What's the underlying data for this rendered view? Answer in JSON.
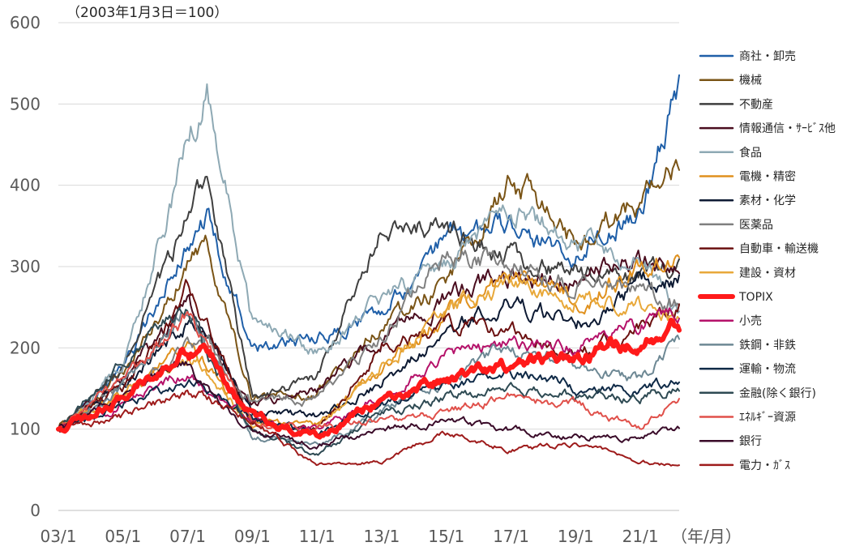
{
  "chart_data": {
    "type": "line",
    "title": "",
    "subtitle": "（2003年1月3日＝100）",
    "xlabel": "（年/月）",
    "ylabel": "",
    "ylim": [
      0,
      600
    ],
    "yticks": [
      "0",
      "100",
      "200",
      "300",
      "400",
      "500",
      "600"
    ],
    "xticks": [
      "03/1",
      "05/1",
      "07/1",
      "09/1",
      "11/1",
      "13/1",
      "15/1",
      "17/1",
      "19/1",
      "21/1"
    ],
    "x": [
      2003.0,
      2005.0,
      2007.0,
      2007.6,
      2009.0,
      2011.0,
      2013.0,
      2015.0,
      2017.0,
      2019.0,
      2021.0,
      2022.2
    ],
    "grid": "horizontal",
    "legend_position": "right",
    "series": [
      {
        "name": "商社・卸売",
        "color": "#1f5fa8",
        "highlight": false,
        "values": [
          100,
          170,
          330,
          360,
          200,
          210,
          250,
          330,
          350,
          320,
          370,
          530
        ]
      },
      {
        "name": "機械",
        "color": "#7a5416",
        "highlight": false,
        "values": [
          100,
          165,
          300,
          330,
          140,
          145,
          230,
          280,
          410,
          330,
          380,
          420
        ]
      },
      {
        "name": "不動産",
        "color": "#3f3f3f",
        "highlight": false,
        "values": [
          100,
          175,
          360,
          410,
          140,
          160,
          350,
          340,
          310,
          290,
          290,
          300
        ]
      },
      {
        "name": "情報通信・ｻｰﾋﾞｽ他",
        "color": "#4a0d1f",
        "highlight": false,
        "values": [
          100,
          160,
          250,
          210,
          130,
          150,
          210,
          260,
          290,
          280,
          310,
          300
        ]
      },
      {
        "name": "食品",
        "color": "#8ea9b4",
        "highlight": false,
        "values": [
          100,
          180,
          450,
          520,
          230,
          200,
          260,
          300,
          370,
          330,
          310,
          240
        ]
      },
      {
        "name": "電機・精密",
        "color": "#e0911e",
        "highlight": false,
        "values": [
          100,
          140,
          200,
          180,
          110,
          105,
          170,
          240,
          290,
          260,
          300,
          310
        ]
      },
      {
        "name": "素材・化学",
        "color": "#0d1a33",
        "highlight": false,
        "values": [
          100,
          150,
          230,
          220,
          120,
          115,
          160,
          220,
          260,
          230,
          280,
          290
        ]
      },
      {
        "name": "医薬品",
        "color": "#7f7f7f",
        "highlight": false,
        "values": [
          100,
          150,
          200,
          210,
          130,
          140,
          210,
          320,
          300,
          280,
          270,
          250
        ]
      },
      {
        "name": "自動車・輸送機",
        "color": "#6b1010",
        "highlight": false,
        "values": [
          100,
          150,
          270,
          230,
          110,
          100,
          200,
          230,
          220,
          190,
          220,
          250
        ]
      },
      {
        "name": "建設・資材",
        "color": "#e8a83a",
        "highlight": false,
        "values": [
          100,
          150,
          190,
          170,
          105,
          100,
          180,
          240,
          280,
          260,
          250,
          230
        ]
      },
      {
        "name": "TOPIX",
        "color": "#ff1a1a",
        "highlight": true,
        "values": [
          100,
          140,
          200,
          190,
          115,
          90,
          135,
          160,
          180,
          190,
          210,
          230
        ]
      },
      {
        "name": "小売",
        "color": "#b5126a",
        "highlight": false,
        "values": [
          100,
          130,
          170,
          150,
          110,
          100,
          140,
          190,
          210,
          200,
          230,
          250
        ]
      },
      {
        "name": "鉄鋼・非鉄",
        "color": "#6d8894",
        "highlight": false,
        "values": [
          100,
          150,
          250,
          200,
          90,
          80,
          120,
          160,
          200,
          180,
          160,
          210
        ]
      },
      {
        "name": "運輸・物流",
        "color": "#0f2a47",
        "highlight": false,
        "values": [
          100,
          130,
          160,
          150,
          110,
          95,
          130,
          150,
          170,
          150,
          150,
          160
        ]
      },
      {
        "name": "金融(除く銀行)",
        "color": "#2e4a53",
        "highlight": false,
        "values": [
          100,
          180,
          260,
          190,
          100,
          70,
          120,
          140,
          150,
          140,
          140,
          150
        ]
      },
      {
        "name": "ｴﾈﾙｷﾞｰ資源",
        "color": "#e0504a",
        "highlight": false,
        "values": [
          100,
          160,
          240,
          200,
          110,
          100,
          110,
          120,
          140,
          130,
          100,
          140
        ]
      },
      {
        "name": "銀行",
        "color": "#3a0b29",
        "highlight": false,
        "values": [
          100,
          140,
          180,
          150,
          95,
          80,
          100,
          110,
          100,
          90,
          90,
          100
        ]
      },
      {
        "name": "電力・ｶﾞｽ",
        "color": "#9e1b1b",
        "highlight": false,
        "values": [
          100,
          115,
          145,
          140,
          110,
          55,
          60,
          95,
          75,
          80,
          60,
          55
        ]
      }
    ]
  }
}
